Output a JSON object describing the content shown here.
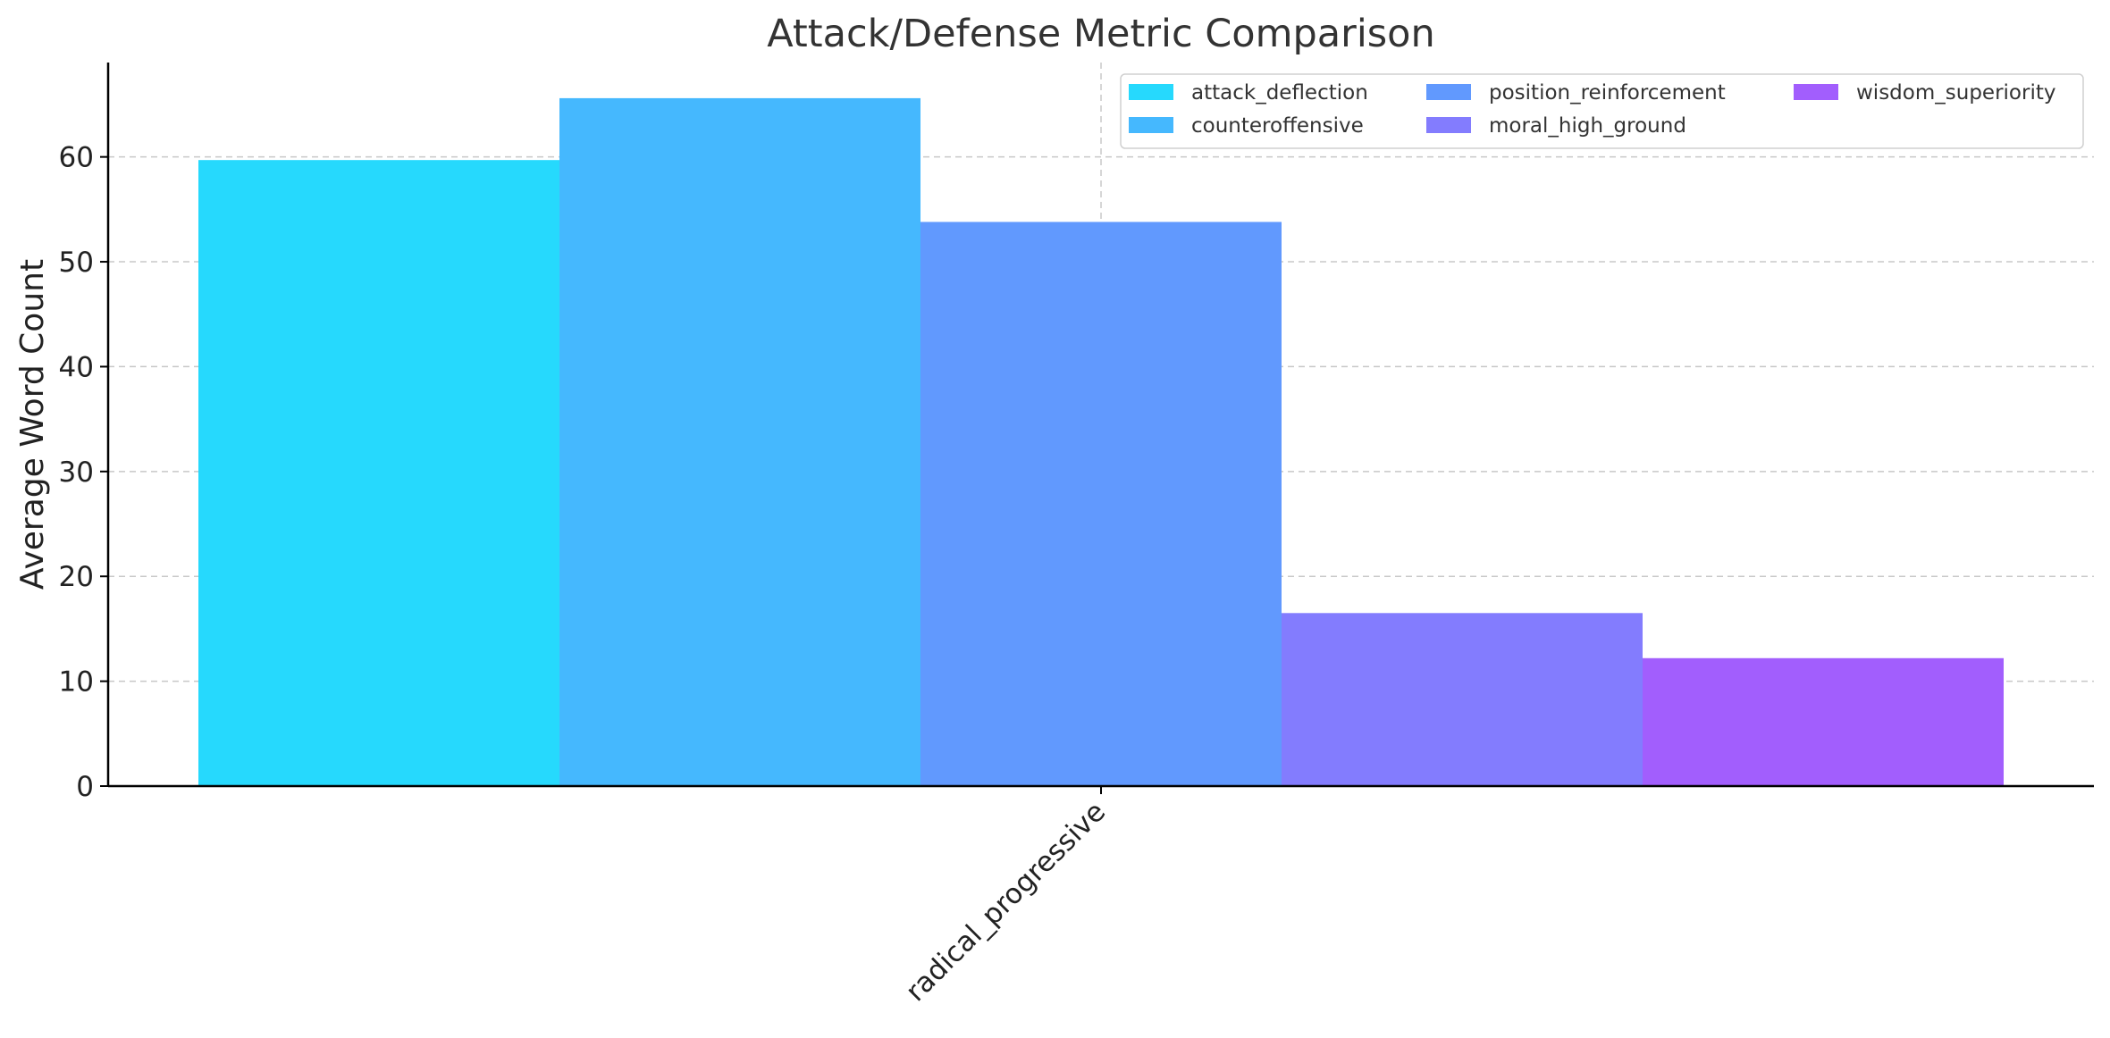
{
  "chart_data": {
    "type": "bar",
    "title": "Attack/Defense Metric Comparison",
    "xlabel": "",
    "ylabel": "Average Word Count",
    "categories": [
      "radical_progressive"
    ],
    "series": [
      {
        "name": "attack_deflection",
        "values": [
          59.7
        ],
        "color": "#26d9fd"
      },
      {
        "name": "counteroffensive",
        "values": [
          65.6
        ],
        "color": "#45b8fe"
      },
      {
        "name": "position_reinforcement",
        "values": [
          53.8
        ],
        "color": "#6199fe"
      },
      {
        "name": "moral_high_ground",
        "values": [
          16.5
        ],
        "color": "#837cfe"
      },
      {
        "name": "wisdom_superiority",
        "values": [
          12.2
        ],
        "color": "#a25efd"
      }
    ],
    "ylim": [
      0,
      69
    ],
    "yticks": [
      0,
      10,
      20,
      30,
      40,
      50,
      60
    ],
    "grid": true,
    "legend_position": "top-right",
    "legend_columns": 3
  }
}
